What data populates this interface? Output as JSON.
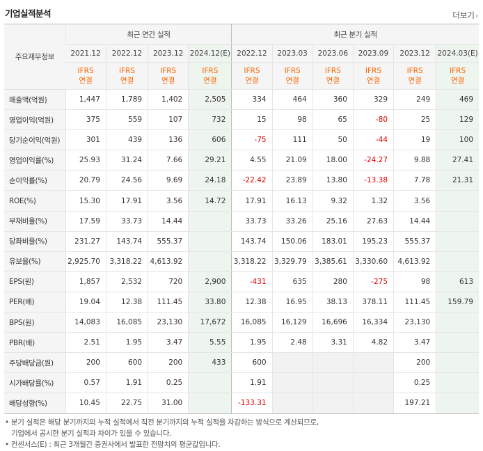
{
  "title": "기업실적분석",
  "more": {
    "label": "더보기",
    "icon": "chevron-right-icon"
  },
  "header": {
    "row_head": "주요재무정보",
    "annual_group": "최근 연간 실적",
    "quarter_group": "최근 분기 실적",
    "periods": [
      "2021.12",
      "2022.12",
      "2023.12",
      "2024.12(E)",
      "2022.12",
      "2023.03",
      "2023.06",
      "2023.09",
      "2023.12",
      "2024.03(E)"
    ],
    "ifrs_line1": "IFRS",
    "ifrs_line2": "연결"
  },
  "rows": [
    {
      "label": "매출액(억원)",
      "values": [
        "1,447",
        "1,789",
        "1,402",
        "2,505",
        "334",
        "464",
        "360",
        "329",
        "249",
        "469"
      ]
    },
    {
      "label": "영업이익(억원)",
      "values": [
        "375",
        "559",
        "107",
        "732",
        "15",
        "98",
        "65",
        "-80",
        "25",
        "129"
      ]
    },
    {
      "label": "당기순이익(억원)",
      "values": [
        "301",
        "439",
        "136",
        "606",
        "-75",
        "111",
        "50",
        "-44",
        "19",
        "100"
      ]
    },
    {
      "label": "영업이익률(%)",
      "values": [
        "25.93",
        "31.24",
        "7.66",
        "29.21",
        "4.55",
        "21.09",
        "18.00",
        "-24.27",
        "9.88",
        "27.41"
      ]
    },
    {
      "label": "순이익률(%)",
      "values": [
        "20.79",
        "24.56",
        "9.69",
        "24.18",
        "-22.42",
        "23.89",
        "13.80",
        "-13.38",
        "7.78",
        "21.31"
      ]
    },
    {
      "label": "ROE(%)",
      "values": [
        "15.30",
        "17.91",
        "3.56",
        "14.72",
        "17.91",
        "16.13",
        "9.32",
        "1.32",
        "3.56",
        ""
      ]
    },
    {
      "label": "부채비율(%)",
      "values": [
        "17.59",
        "33.73",
        "14.44",
        "",
        "33.73",
        "33.26",
        "25.16",
        "27.63",
        "14.44",
        ""
      ]
    },
    {
      "label": "당좌비율(%)",
      "values": [
        "231.27",
        "143.74",
        "555.37",
        "",
        "143.74",
        "150.06",
        "183.01",
        "195.23",
        "555.37",
        ""
      ]
    },
    {
      "label": "유보율(%)",
      "values": [
        "2,925.70",
        "3,318.22",
        "4,613.92",
        "",
        "3,318.22",
        "3,329.79",
        "3,385.61",
        "3,330.60",
        "4,613.92",
        ""
      ]
    },
    {
      "label": "EPS(원)",
      "values": [
        "1,857",
        "2,532",
        "720",
        "2,900",
        "-431",
        "635",
        "280",
        "-275",
        "98",
        "613"
      ]
    },
    {
      "label": "PER(배)",
      "values": [
        "19.04",
        "12.38",
        "111.45",
        "33.80",
        "12.38",
        "16.95",
        "38.13",
        "378.11",
        "111.45",
        "159.79"
      ]
    },
    {
      "label": "BPS(원)",
      "values": [
        "14,083",
        "16,085",
        "23,130",
        "17,672",
        "16,085",
        "16,129",
        "16,696",
        "16,334",
        "23,130",
        ""
      ]
    },
    {
      "label": "PBR(배)",
      "values": [
        "2.51",
        "1.95",
        "3.47",
        "5.55",
        "1.95",
        "2.48",
        "3.31",
        "4.82",
        "3.47",
        ""
      ]
    },
    {
      "label": "주당배당금(원)",
      "values": [
        "200",
        "600",
        "200",
        "433",
        "600",
        "",
        "",
        "",
        "200",
        ""
      ]
    },
    {
      "label": "시가배당률(%)",
      "values": [
        "0.57",
        "1.91",
        "0.25",
        "",
        "1.91",
        "",
        "",
        "",
        "0.25",
        ""
      ]
    },
    {
      "label": "배당성향(%)",
      "values": [
        "10.45",
        "22.75",
        "31.00",
        "",
        "-133.31",
        "",
        "",
        "",
        "197.21",
        ""
      ]
    }
  ],
  "notes": [
    "• 분기 실적은 해당 분기까지의 누적 실적에서 직전 분기까지의 누적 실적을 차감하는 방식으로 계산되므로,",
    "기업에서 공시한 분기 실적과 차이가 있을 수 있습니다.",
    "• 컨센서스(E) : 최근 3개월간 증권사에서 발표한 전망치의 평균값입니다."
  ],
  "colors": {
    "negative": "#e00000",
    "ifrs": "#ff6600",
    "estimate_bg": "#eef4ee"
  }
}
